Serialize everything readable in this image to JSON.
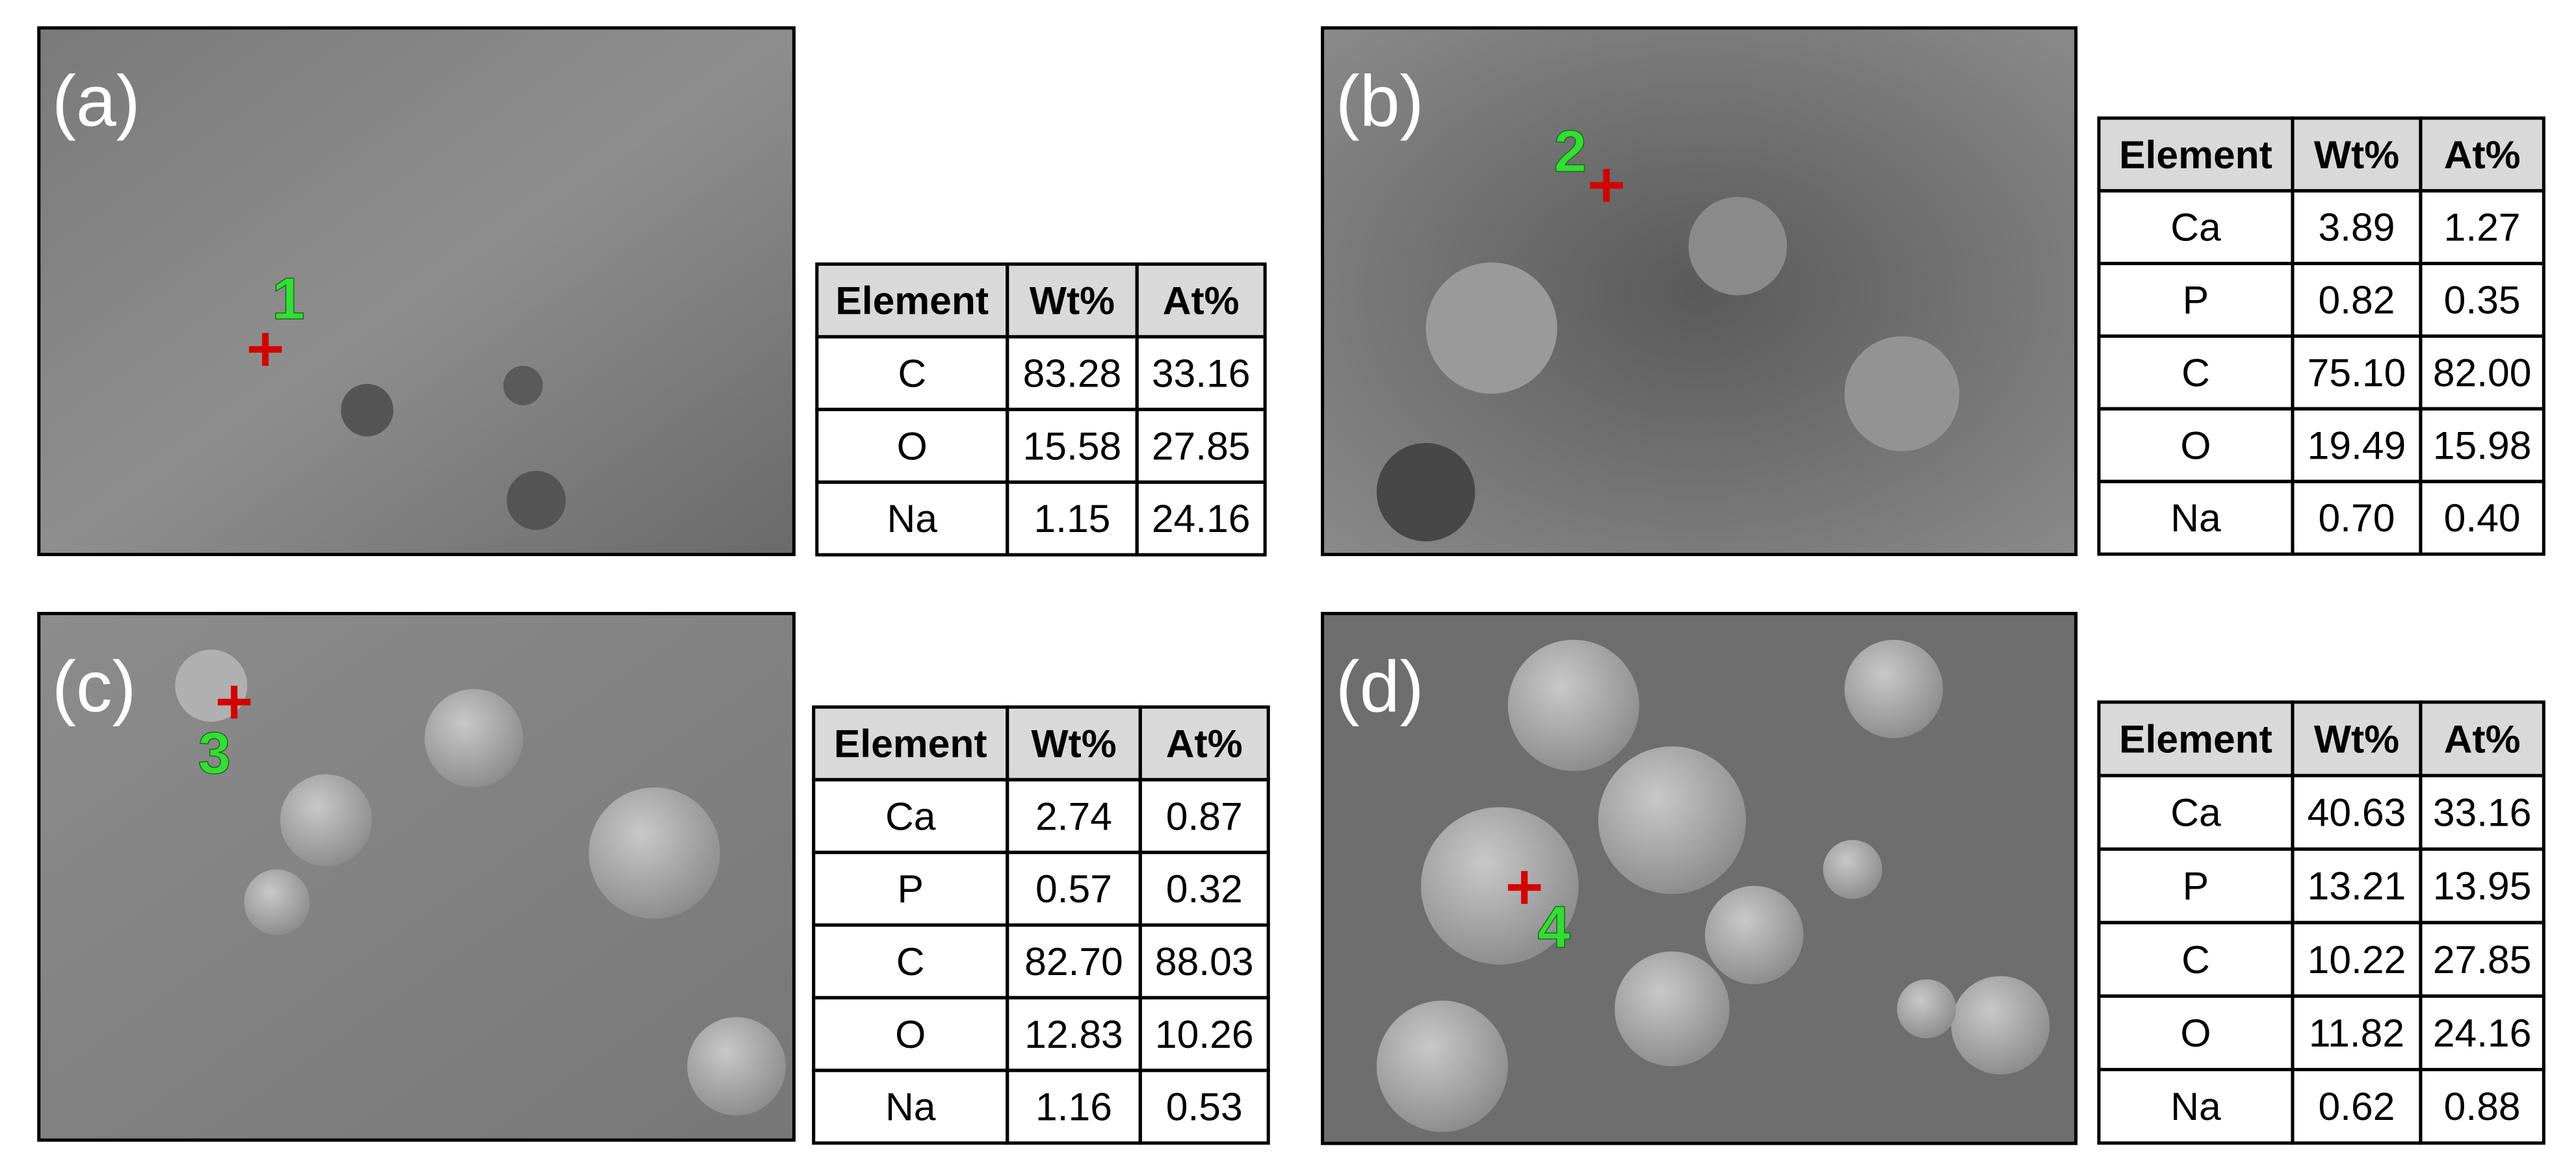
{
  "panels": [
    {
      "label": "(a)",
      "point": "1",
      "table": {
        "header": [
          "Element",
          "Wt%",
          "At%"
        ],
        "rows": [
          [
            "C",
            "83.28",
            "33.16"
          ],
          [
            "O",
            "15.58",
            "27.85"
          ],
          [
            "Na",
            "1.15",
            "24.16"
          ]
        ]
      }
    },
    {
      "label": "(b)",
      "point": "2",
      "table": {
        "header": [
          "Element",
          "Wt%",
          "At%"
        ],
        "rows": [
          [
            "Ca",
            "3.89",
            "1.27"
          ],
          [
            "P",
            "0.82",
            "0.35"
          ],
          [
            "C",
            "75.10",
            "82.00"
          ],
          [
            "O",
            "19.49",
            "15.98"
          ],
          [
            "Na",
            "0.70",
            "0.40"
          ]
        ]
      }
    },
    {
      "label": "(c)",
      "point": "3",
      "table": {
        "header": [
          "Element",
          "Wt%",
          "At%"
        ],
        "rows": [
          [
            "Ca",
            "2.74",
            "0.87"
          ],
          [
            "P",
            "0.57",
            "0.32"
          ],
          [
            "C",
            "82.70",
            "88.03"
          ],
          [
            "O",
            "12.83",
            "10.26"
          ],
          [
            "Na",
            "1.16",
            "0.53"
          ]
        ]
      }
    },
    {
      "label": "(d)",
      "point": "4",
      "table": {
        "header": [
          "Element",
          "Wt%",
          "At%"
        ],
        "rows": [
          [
            "Ca",
            "40.63",
            "33.16"
          ],
          [
            "P",
            "13.21",
            "13.95"
          ],
          [
            "C",
            "10.22",
            "27.85"
          ],
          [
            "O",
            "11.82",
            "24.16"
          ],
          [
            "Na",
            "0.62",
            "0.88"
          ]
        ]
      }
    }
  ]
}
